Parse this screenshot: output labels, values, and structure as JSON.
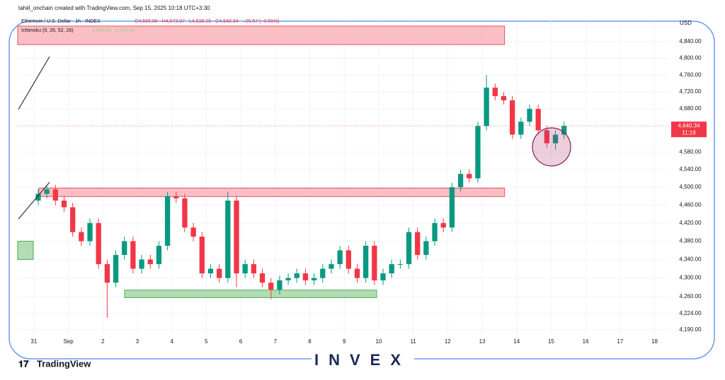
{
  "credit": "tahiil_onchain created with TradingView.com, Sep 15, 2025 10:18 UTC+3:30",
  "brand": "TradingView",
  "watermark": "INVEX",
  "chart_data": {
    "type": "candlestick",
    "symbol": "Ethereum / U.S. Dollar · 1h · INDEX",
    "ohlc": [
      "O4,665.88",
      "H4,673.07",
      "L4,638.25",
      "C4,640.34",
      "−25.67 (−0.55%)"
    ],
    "indicator": "Ichimoku (9, 26, 52, 26)",
    "indicator_values": [
      "4,668.26",
      "4,672.34"
    ],
    "currency": "USD",
    "last_price_label": "4,640.34",
    "countdown": "11:19",
    "up_color": "#089981",
    "down_color": "#f23645",
    "log_scale": true,
    "xlim": [
      -0.47,
      18.42
    ],
    "ylim": [
      4178,
      4890
    ],
    "xticks": [
      {
        "value": 0,
        "label": "31"
      },
      {
        "value": 1,
        "label": "Sep"
      },
      2,
      3,
      4,
      5,
      6,
      7,
      8,
      9,
      10,
      11,
      12,
      13,
      14,
      15,
      16,
      17,
      18
    ],
    "yticks": [
      {
        "value": 4840,
        "label": "4,840.00"
      },
      {
        "value": 4800,
        "label": "4,800.00"
      },
      {
        "value": 4760,
        "label": "4,760.00"
      },
      {
        "value": 4720,
        "label": "4,720.00"
      },
      {
        "value": 4680,
        "label": "4,680.00"
      },
      {
        "value": 4580,
        "label": "4,580.00"
      },
      {
        "value": 4540,
        "label": "4,540.00"
      },
      {
        "value": 4500,
        "label": "4,500.00"
      },
      {
        "value": 4460,
        "label": "4,460.00"
      },
      {
        "value": 4420,
        "label": "4,420.00"
      },
      {
        "value": 4380,
        "label": "4,380.00"
      },
      {
        "value": 4340,
        "label": "4,340.00"
      },
      {
        "value": 4300,
        "label": "4,300.00"
      },
      {
        "value": 4260,
        "label": "4,260.00"
      },
      {
        "value": 4224,
        "label": "4,224.00"
      },
      {
        "value": 4190,
        "label": "4,190.00"
      }
    ],
    "zones": [
      {
        "x": [
          -0.47,
          13.65
        ],
        "y": [
          4833,
          4878
        ],
        "color": "#f9b4ba"
      },
      {
        "x": [
          0.14,
          13.65
        ],
        "y": [
          4479,
          4498
        ],
        "color": "#f9b4ba"
      },
      {
        "x": [
          2.63,
          9.94
        ],
        "y": [
          4258,
          4274
        ],
        "color": "#a5d6a7"
      },
      {
        "x": [
          -0.47,
          -0.02
        ],
        "y": [
          4340,
          4380
        ],
        "color": "#a5d6a7"
      }
    ],
    "x": [
      0.125,
      0.375,
      0.625,
      0.875,
      1.125,
      1.375,
      1.625,
      1.875,
      2.125,
      2.375,
      2.625,
      2.875,
      3.125,
      3.375,
      3.625,
      3.875,
      4.125,
      4.375,
      4.625,
      4.875,
      5.125,
      5.375,
      5.625,
      5.875,
      6.125,
      6.375,
      6.625,
      6.875,
      7.125,
      7.375,
      7.625,
      7.875,
      8.125,
      8.375,
      8.625,
      8.875,
      9.125,
      9.375,
      9.625,
      9.875,
      10.125,
      10.375,
      10.625,
      10.875,
      11.125,
      11.375,
      11.625,
      11.875,
      12.125,
      12.375,
      12.625,
      12.875,
      13.125,
      13.375,
      13.625,
      13.875,
      14.125,
      14.375,
      14.625,
      14.875,
      15.125,
      15.375
    ],
    "open": [
      4470,
      4485,
      4495,
      4470,
      4455,
      4400,
      4380,
      4420,
      4330,
      4290,
      4350,
      4380,
      4320,
      4340,
      4330,
      4370,
      4480,
      4475,
      4410,
      4390,
      4310,
      4320,
      4300,
      4470,
      4310,
      4330,
      4310,
      4290,
      4275,
      4295,
      4300,
      4310,
      4295,
      4300,
      4320,
      4330,
      4360,
      4320,
      4300,
      4370,
      4295,
      4310,
      4330,
      4330,
      4400,
      4350,
      4380,
      4420,
      4410,
      4500,
      4530,
      4520,
      4640,
      4730,
      4710,
      4700,
      4620,
      4650,
      4680,
      4630,
      4600,
      4620
    ],
    "high": [
      4495,
      4505,
      4505,
      4480,
      4465,
      4410,
      4430,
      4430,
      4340,
      4360,
      4390,
      4390,
      4350,
      4350,
      4380,
      4490,
      4490,
      4485,
      4420,
      4400,
      4330,
      4330,
      4490,
      4480,
      4340,
      4340,
      4320,
      4300,
      4305,
      4310,
      4320,
      4320,
      4310,
      4330,
      4340,
      4370,
      4370,
      4330,
      4380,
      4380,
      4320,
      4340,
      4340,
      4410,
      4410,
      4390,
      4430,
      4430,
      4510,
      4540,
      4540,
      4650,
      4760,
      4740,
      4720,
      4710,
      4660,
      4690,
      4690,
      4640,
      4630,
      4650
    ],
    "low": [
      4460,
      4475,
      4460,
      4445,
      4390,
      4370,
      4370,
      4320,
      4215,
      4280,
      4340,
      4310,
      4310,
      4320,
      4320,
      4360,
      4465,
      4400,
      4380,
      4300,
      4300,
      4290,
      4290,
      4280,
      4300,
      4300,
      4280,
      4255,
      4265,
      4285,
      4290,
      4285,
      4285,
      4290,
      4310,
      4320,
      4310,
      4290,
      4290,
      4285,
      4285,
      4300,
      4320,
      4320,
      4340,
      4340,
      4370,
      4400,
      4400,
      4490,
      4510,
      4510,
      4630,
      4700,
      4690,
      4610,
      4610,
      4640,
      4620,
      4590,
      4585,
      4610
    ],
    "close": [
      4485,
      4495,
      4470,
      4455,
      4400,
      4380,
      4420,
      4330,
      4290,
      4350,
      4380,
      4320,
      4340,
      4330,
      4370,
      4480,
      4475,
      4410,
      4390,
      4310,
      4320,
      4300,
      4470,
      4310,
      4330,
      4310,
      4290,
      4275,
      4295,
      4300,
      4310,
      4295,
      4300,
      4320,
      4330,
      4360,
      4320,
      4300,
      4370,
      4295,
      4310,
      4330,
      4330,
      4400,
      4350,
      4380,
      4420,
      4410,
      4500,
      4530,
      4520,
      4640,
      4730,
      4710,
      4700,
      4620,
      4650,
      4680,
      4630,
      4600,
      4620,
      4640.34
    ]
  }
}
